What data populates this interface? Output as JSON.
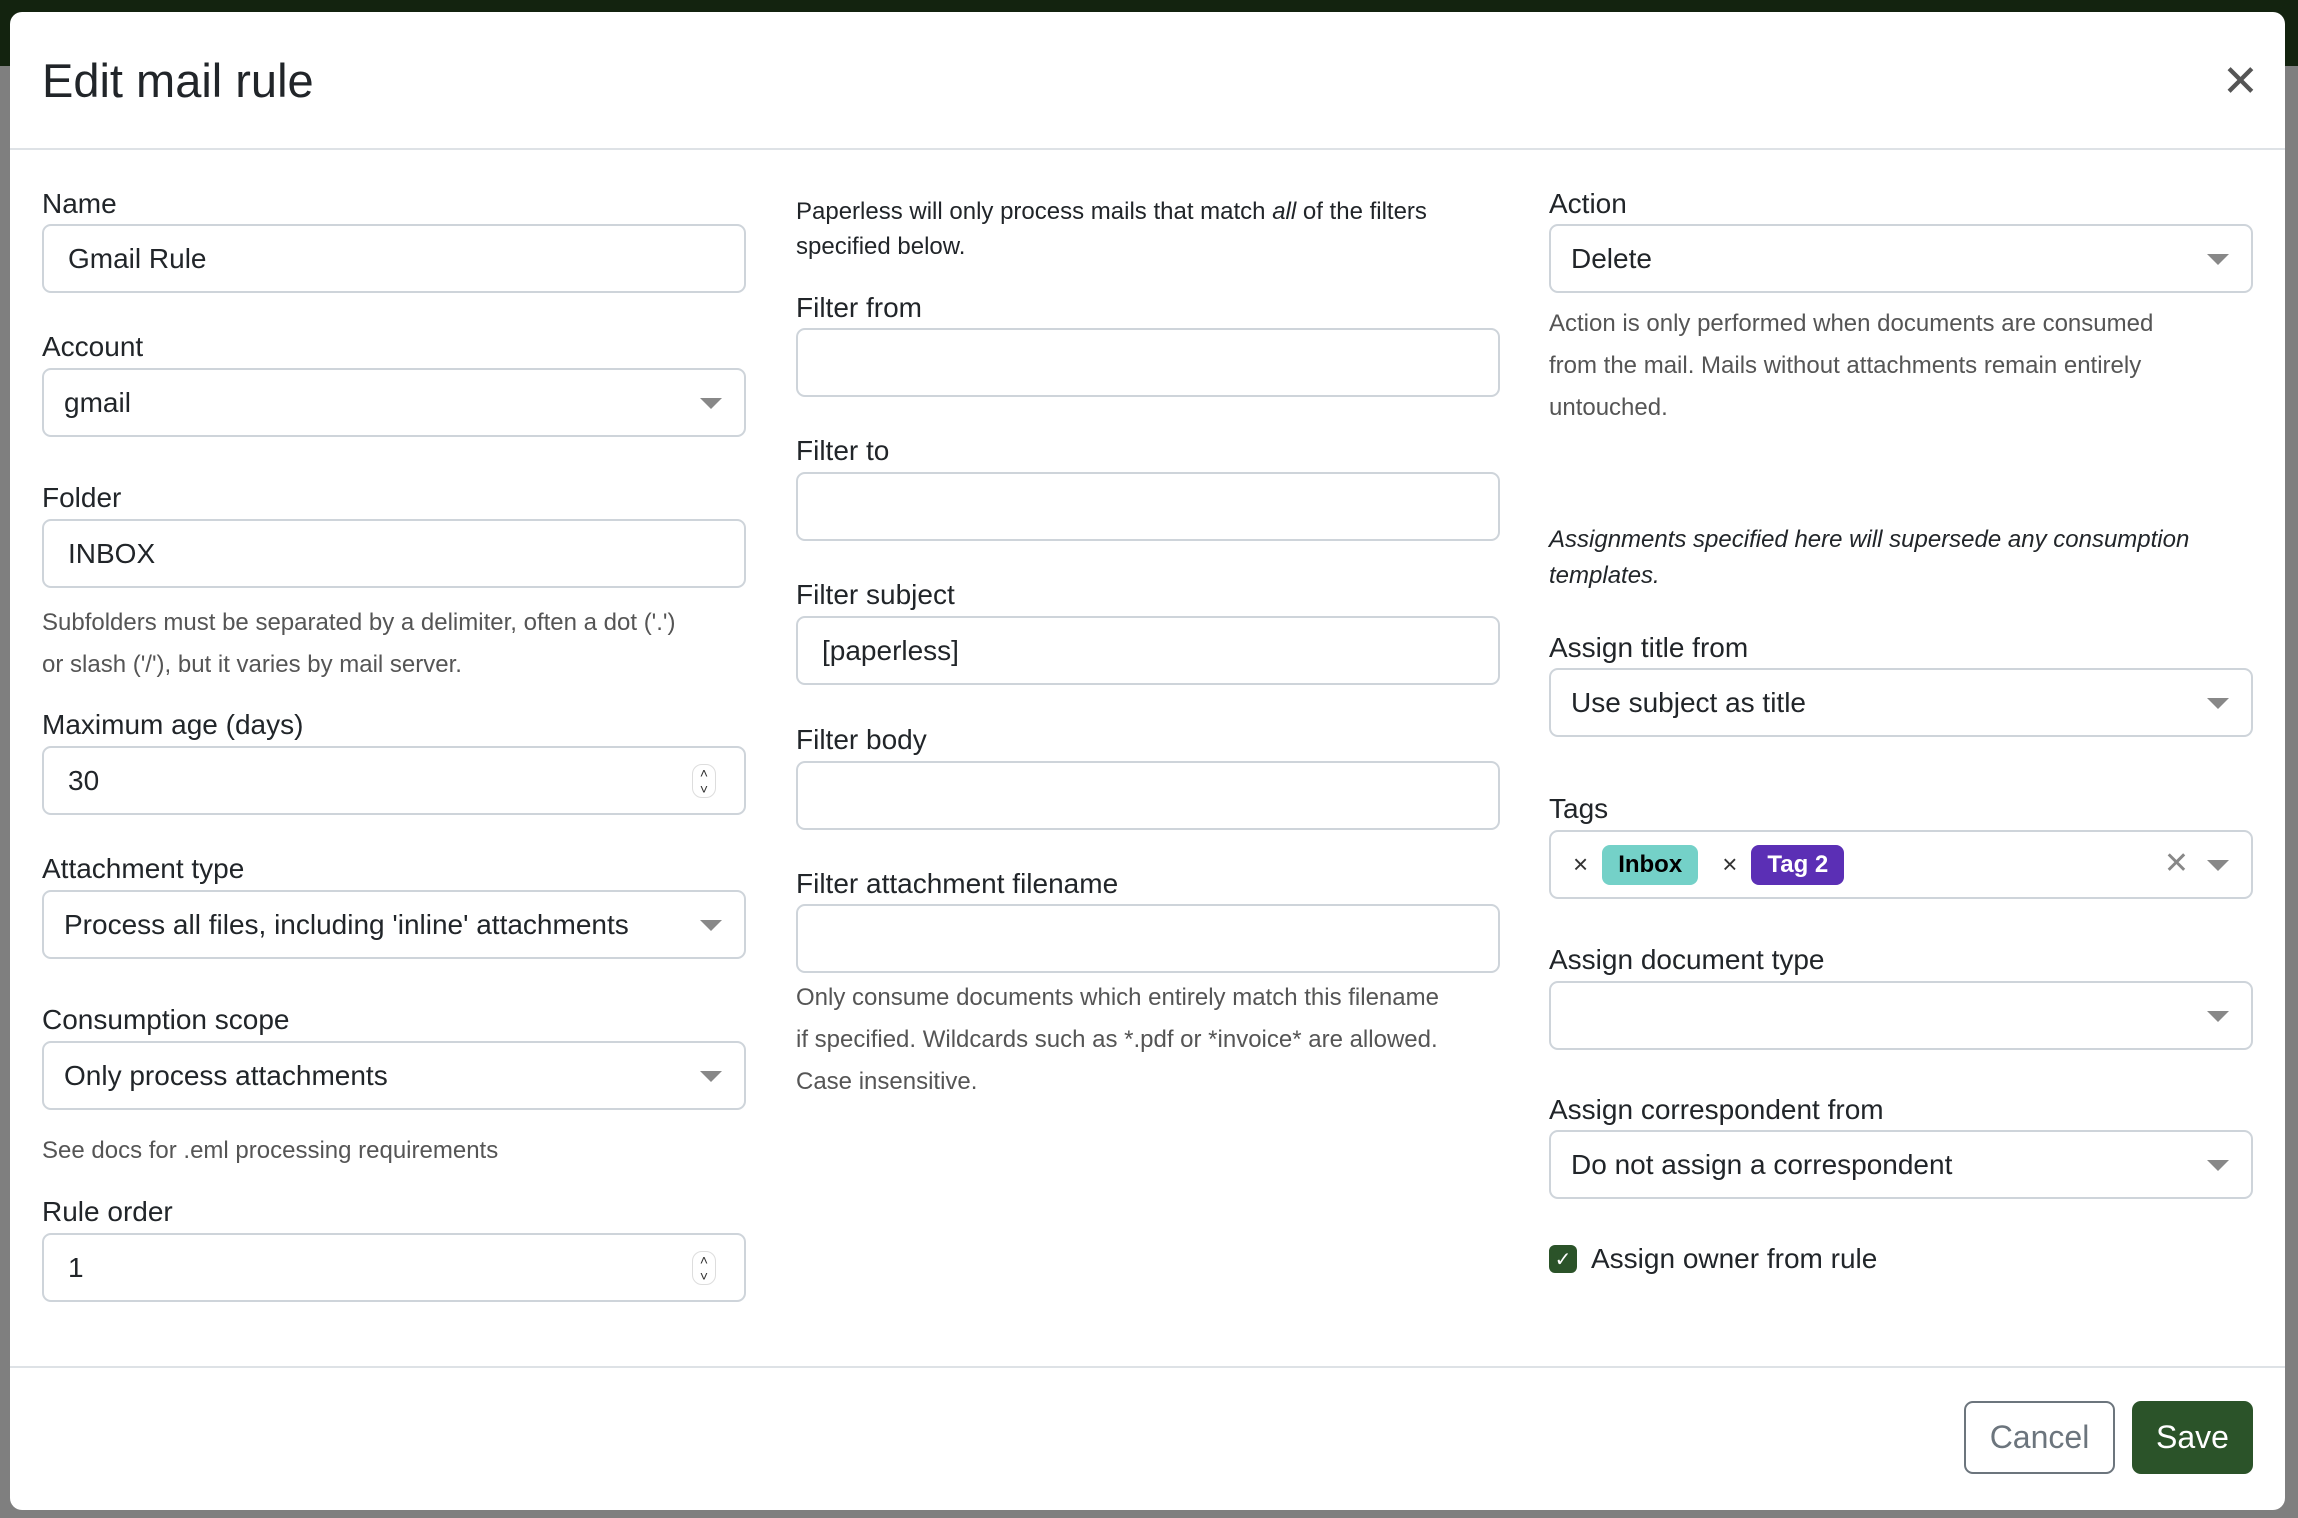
{
  "modal": {
    "title": "Edit mail rule",
    "cancel": "Cancel",
    "save": "Save"
  },
  "col1": {
    "name_label": "Name",
    "name_value": "Gmail Rule",
    "account_label": "Account",
    "account_value": "gmail",
    "folder_label": "Folder",
    "folder_value": "INBOX",
    "folder_help": [
      "Subfolders must be separated by a delimiter, often a dot ('.')",
      "or slash ('/'), but it varies by mail server."
    ],
    "max_age_label": "Maximum age (days)",
    "max_age_value": "30",
    "attachment_label": "Attachment type",
    "attachment_value": "Process all files, including 'inline' attachments",
    "scope_label": "Consumption scope",
    "scope_value": "Only process attachments",
    "scope_help": "See docs for .eml processing requirements",
    "order_label": "Rule order",
    "order_value": "1"
  },
  "col2": {
    "intro_a": "Paperless will only process mails that match ",
    "intro_em": "all",
    "intro_b": " of the filters",
    "intro_line2": "specified below.",
    "from_label": "Filter from",
    "from_value": "",
    "to_label": "Filter to",
    "to_value": "",
    "subject_label": "Filter subject",
    "subject_value": "[paperless]",
    "body_label": "Filter body",
    "body_value": "",
    "filename_label": "Filter attachment filename",
    "filename_value": "",
    "filename_help": [
      "Only consume documents which entirely match this filename",
      "if specified. Wildcards such as *.pdf or *invoice* are allowed.",
      "Case insensitive."
    ]
  },
  "col3": {
    "action_label": "Action",
    "action_value": "Delete",
    "action_help": [
      "Action is only performed when documents are consumed",
      "from the mail. Mails without attachments remain entirely",
      "untouched."
    ],
    "assign_note": [
      "Assignments specified here will supersede any consumption",
      "templates."
    ],
    "title_label": "Assign title from",
    "title_value": "Use subject as title",
    "tags_label": "Tags",
    "tags": [
      {
        "label": "Inbox",
        "bg": "#74d1c8",
        "fg": "#000000"
      },
      {
        "label": "Tag 2",
        "bg": "#5b2fb5",
        "fg": "#ffffff"
      }
    ],
    "doctype_label": "Assign document type",
    "doctype_value": "",
    "corr_label": "Assign correspondent from",
    "corr_value": "Do not assign a correspondent",
    "owner_label": "Assign owner from rule",
    "owner_checked": true
  },
  "colors": {
    "primary": "#2b5329",
    "border": "#ced4da"
  }
}
